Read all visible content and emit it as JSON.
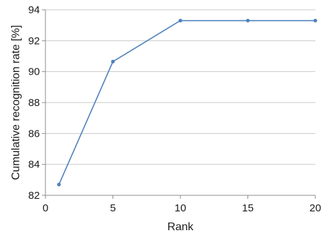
{
  "chart_data": {
    "type": "line",
    "title": "",
    "xlabel": "Rank",
    "ylabel": "Cumulative recognition rate [%]",
    "xlim": [
      0,
      20
    ],
    "ylim": [
      82,
      94
    ],
    "x_ticks": [
      0,
      5,
      10,
      15,
      20
    ],
    "y_ticks": [
      82,
      84,
      86,
      88,
      90,
      92,
      94
    ],
    "grid": "horizontal",
    "legend": "none",
    "series": [
      {
        "x": [
          1,
          5,
          10,
          15,
          20
        ],
        "y": [
          82.7,
          90.65,
          93.3,
          93.3,
          93.3
        ],
        "color": "#4f81bd"
      }
    ]
  }
}
